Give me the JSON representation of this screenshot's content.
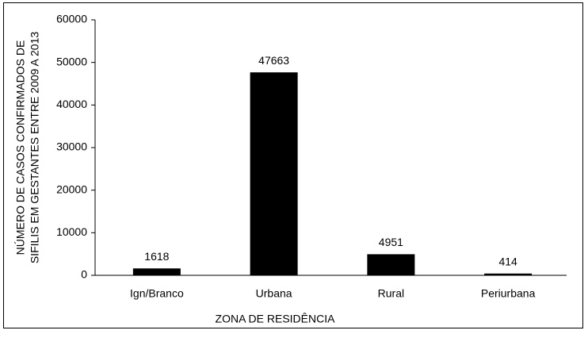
{
  "chart_data": {
    "type": "bar",
    "ylabel": [
      "NÚMERO DE CASOS CONFIRMADOS DE",
      "SIFILIS EM GESTANTES  ENTRE 2009 A 2013"
    ],
    "xlabel": "ZONA DE RESIDÊNCIA",
    "categories": [
      "Ign/Branco",
      "Urbana",
      "Rural",
      "Periurbana"
    ],
    "values": [
      1618,
      47663,
      4951,
      414
    ],
    "color": "#000000",
    "ylim": [
      0,
      60000
    ],
    "yticks": [
      0,
      10000,
      20000,
      30000,
      40000,
      50000,
      60000
    ],
    "grid": false
  }
}
